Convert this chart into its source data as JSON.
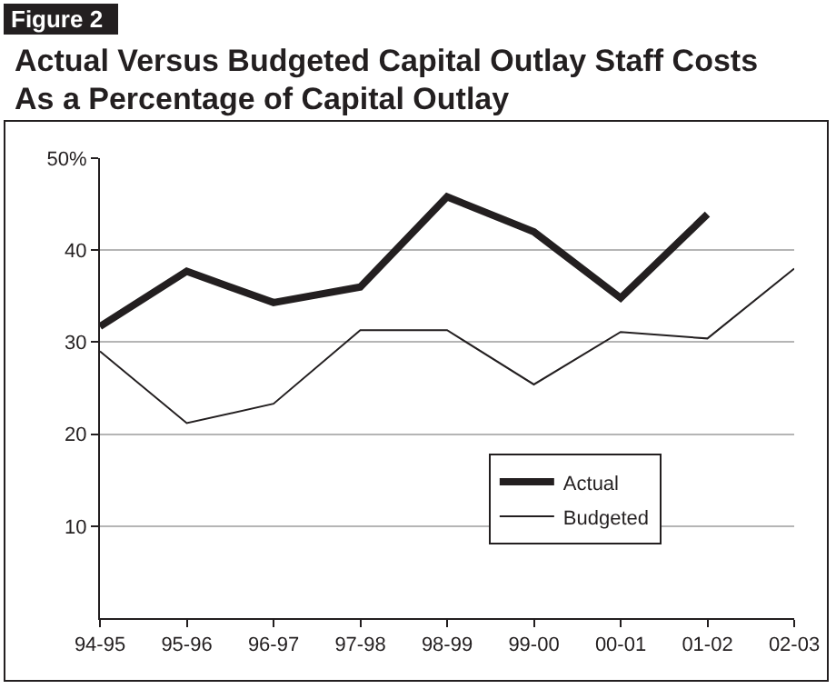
{
  "chart_data": {
    "type": "line",
    "title": "Actual Versus Budgeted Capital Outlay Staff Costs As a Percentage of Capital Outlay",
    "annotations": [
      "Figure 2"
    ],
    "categories": [
      "94-95",
      "95-96",
      "96-97",
      "97-98",
      "98-99",
      "99-00",
      "00-01",
      "01-02",
      "02-03"
    ],
    "series": [
      {
        "name": "Actual",
        "color": "#231f20",
        "values": [
          31.7,
          37.7,
          34.3,
          36,
          45.8,
          42,
          34.8,
          43.9,
          null
        ]
      },
      {
        "name": "Budgeted",
        "color": "#231f20",
        "values": [
          29,
          21.2,
          23.3,
          31.3,
          31.3,
          25.4,
          31.1,
          30.4,
          38
        ]
      }
    ],
    "ylim": [
      0,
      50
    ],
    "yticks": [
      10,
      20,
      30,
      40,
      {
        "value": 50,
        "label": "50%"
      }
    ],
    "grid": "y",
    "legend": "bottom right",
    "marker": "none",
    "line_style": "solid"
  }
}
